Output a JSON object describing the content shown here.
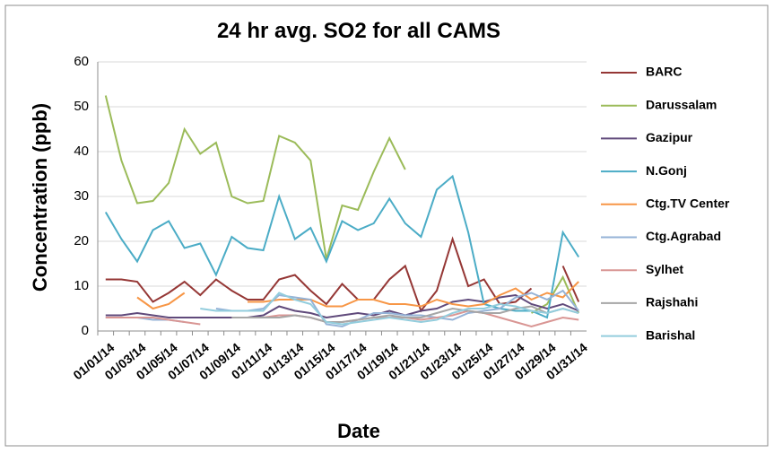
{
  "chart_data": {
    "type": "line",
    "title": "24 hr avg. SO2 for all CAMS",
    "x_label": "Date",
    "y_label": "Concentration (ppb)",
    "categories": [
      "01/01/14",
      null,
      "01/03/14",
      null,
      "01/05/14",
      null,
      "01/07/14",
      null,
      "01/09/14",
      null,
      "01/11/14",
      null,
      "01/13/14",
      null,
      "01/15/14",
      null,
      "01/17/14",
      null,
      "01/19/14",
      null,
      "01/21/14",
      null,
      "01/23/14",
      null,
      "01/25/14",
      null,
      "01/27/14",
      null,
      "01/29/14",
      null,
      "01/31/14"
    ],
    "ylim": [
      0,
      60
    ],
    "yticks": [
      0,
      10,
      20,
      30,
      40,
      50,
      60
    ],
    "grid": true,
    "series": [
      {
        "name": "BARC",
        "color": "#953735",
        "values": [
          11.5,
          11.5,
          11,
          6.5,
          8.5,
          11,
          8,
          11.5,
          9,
          7,
          7,
          11.5,
          12.5,
          9,
          6,
          10.5,
          7,
          7,
          11.5,
          14.5,
          4.5,
          9,
          20.5,
          10,
          11.5,
          6,
          6.5,
          9.5,
          null,
          14.5,
          6.5
        ]
      },
      {
        "name": "Darussalam",
        "color": "#9bbb59",
        "values": [
          52.5,
          38,
          28.5,
          29,
          33,
          45,
          39.5,
          42,
          30,
          28.5,
          29,
          43.5,
          42,
          38,
          16,
          28,
          27,
          35.5,
          43,
          36,
          null,
          null,
          null,
          null,
          null,
          null,
          null,
          4,
          6,
          12,
          4
        ]
      },
      {
        "name": "Gazipur",
        "color": "#604a7b",
        "values": [
          3.5,
          3.5,
          4,
          3.5,
          3,
          3,
          3,
          3,
          3,
          3,
          3.5,
          5.5,
          4.5,
          4,
          3,
          3.5,
          4,
          3.5,
          4.5,
          3.5,
          4.5,
          5,
          6.5,
          7,
          6.5,
          7.5,
          8,
          6,
          5,
          6,
          4.5
        ]
      },
      {
        "name": "N.Gonj",
        "color": "#4bacc6",
        "values": [
          26.5,
          20.5,
          15.5,
          22.5,
          24.5,
          18.5,
          19.5,
          12.5,
          21,
          18.5,
          18,
          30,
          20.5,
          23,
          15.5,
          24.5,
          22.5,
          24,
          29.5,
          24,
          21,
          31.5,
          34.5,
          22,
          6,
          5,
          4.5,
          4.5,
          3,
          22,
          16.5
        ]
      },
      {
        "name": "Ctg.TV Center",
        "color": "#f79646",
        "values": [
          null,
          null,
          7.5,
          5,
          6,
          8.5,
          null,
          null,
          null,
          6.5,
          6.5,
          7,
          7,
          7,
          5.5,
          5.5,
          7,
          7,
          6,
          6,
          5.5,
          7,
          6,
          5.5,
          6,
          8,
          9.5,
          7,
          8.5,
          7.5,
          11
        ]
      },
      {
        "name": "Ctg.Agrabad",
        "color": "#95b3d7",
        "values": [
          3,
          3,
          3,
          2.5,
          2.5,
          2,
          null,
          5,
          4.5,
          4.5,
          5,
          8,
          7.5,
          7,
          1.5,
          1,
          2.5,
          4,
          4,
          3.5,
          3.5,
          3,
          2.5,
          4,
          4.5,
          5,
          7.5,
          8.5,
          7,
          9,
          4.5
        ]
      },
      {
        "name": "Sylhet",
        "color": "#d99694",
        "values": [
          3,
          3,
          3,
          3,
          2.5,
          2,
          1.5,
          null,
          3,
          3,
          3,
          3.5,
          3.5,
          3,
          2,
          2,
          2.5,
          3,
          3,
          3,
          2.5,
          3,
          3.5,
          4.5,
          4,
          3,
          2,
          1,
          2,
          3,
          2.5
        ]
      },
      {
        "name": "Rajshahi",
        "color": "#a6a6a6",
        "values": [
          null,
          null,
          null,
          null,
          null,
          null,
          null,
          null,
          3,
          3,
          3,
          3,
          3.5,
          3,
          2,
          2,
          2.5,
          3,
          3.5,
          3,
          3,
          4,
          5,
          4.5,
          4,
          4,
          5,
          5.5,
          4,
          5,
          4
        ]
      },
      {
        "name": "Barishal",
        "color": "#93cddd",
        "values": [
          null,
          null,
          null,
          null,
          null,
          null,
          5,
          4.5,
          4.5,
          4.5,
          4.5,
          8.5,
          7,
          6,
          2,
          1.5,
          2,
          2.5,
          3,
          2.5,
          2,
          2.5,
          4,
          5,
          5,
          6,
          5.5,
          4.5,
          4,
          5,
          4
        ]
      }
    ]
  }
}
